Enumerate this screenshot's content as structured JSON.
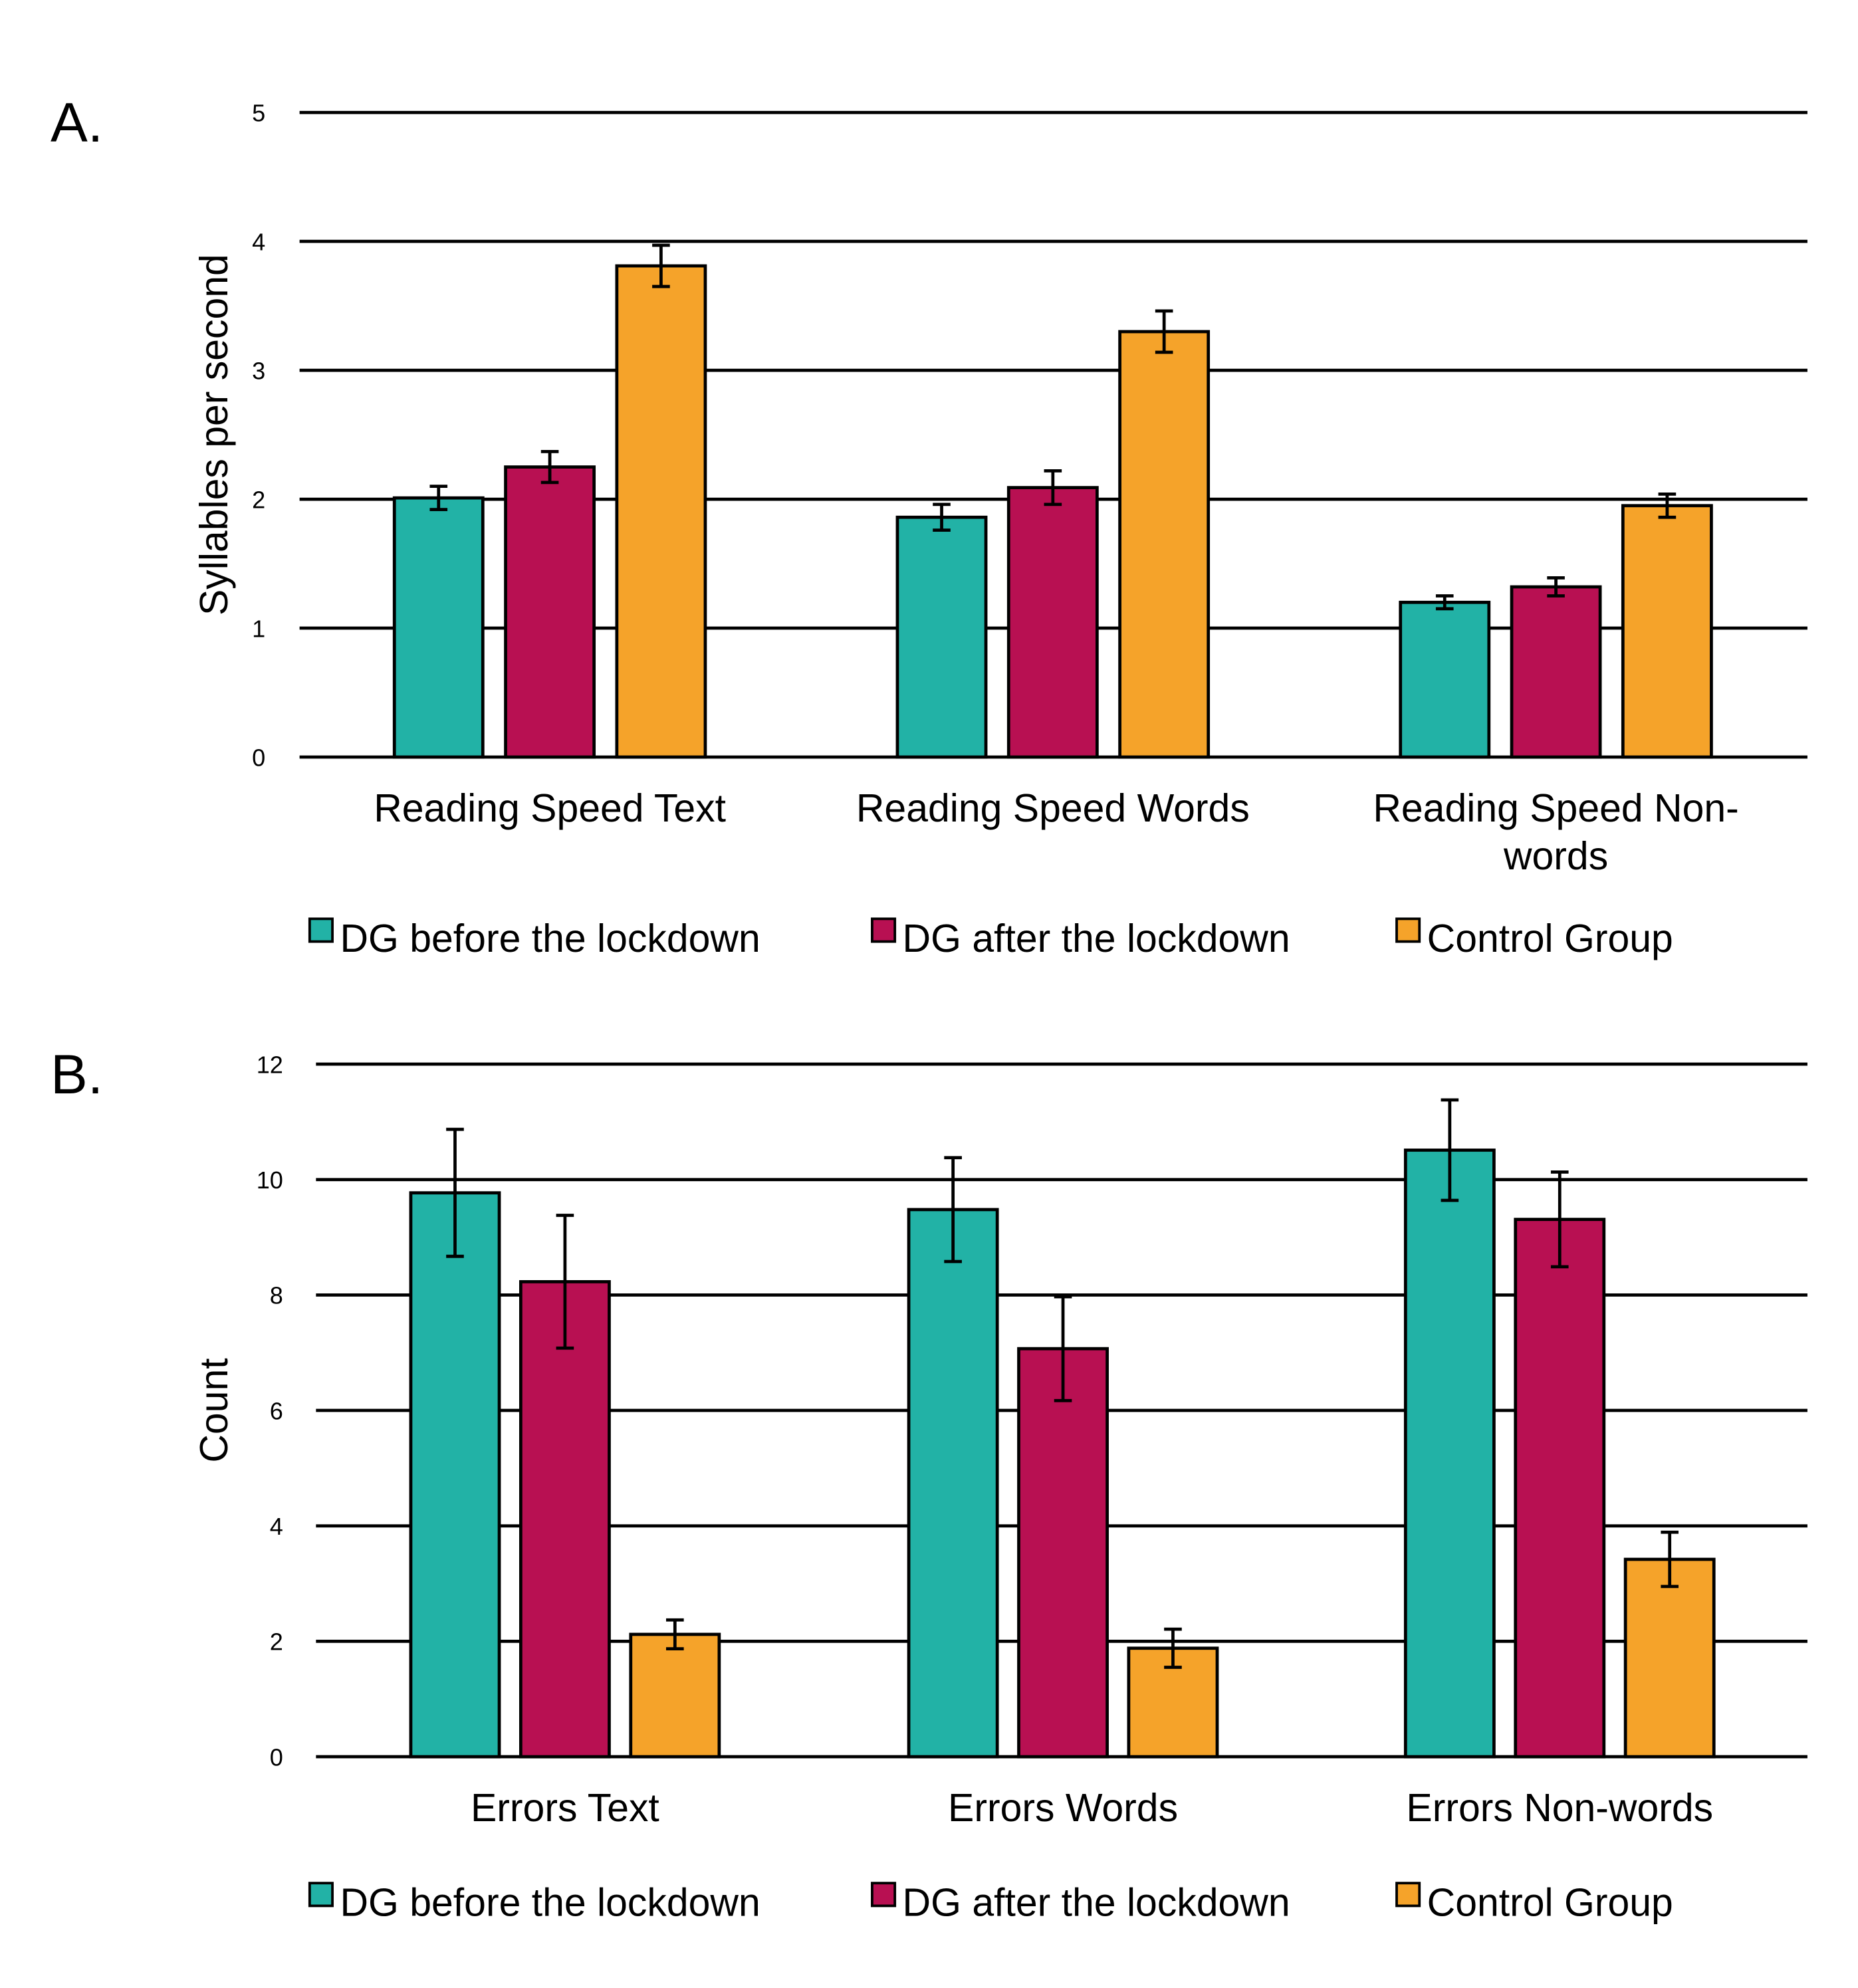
{
  "colors": {
    "before": "#22b2a6",
    "after": "#b81052",
    "control": "#f5a32a"
  },
  "chart_data": [
    {
      "type": "bar",
      "panel_label": "A.",
      "ylabel": "Syllables per second",
      "ylim": [
        0,
        5
      ],
      "yticks": [
        "0",
        "1",
        "2",
        "3",
        "4",
        "5"
      ],
      "grid": true,
      "legend_position": "bottom",
      "categories": [
        "Reading Speed Text",
        "Reading Speed Words",
        "Reading Speed Non-words"
      ],
      "category_lines": [
        [
          "Reading Speed Text"
        ],
        [
          "Reading Speed Words"
        ],
        [
          "Reading Speed Non-",
          "words"
        ]
      ],
      "series": [
        {
          "name": "DG before the lockdown",
          "key": "before",
          "values": [
            2.01,
            1.86,
            1.2
          ],
          "errors": [
            0.09,
            0.1,
            0.05
          ]
        },
        {
          "name": "DG after the lockdown",
          "key": "after",
          "values": [
            2.25,
            2.09,
            1.32
          ],
          "errors": [
            0.12,
            0.13,
            0.07
          ]
        },
        {
          "name": "Control Group",
          "key": "control",
          "values": [
            3.81,
            3.3,
            1.95
          ],
          "errors": [
            0.16,
            0.16,
            0.09
          ]
        }
      ]
    },
    {
      "type": "bar",
      "panel_label": "B.",
      "ylabel": "Count",
      "ylim": [
        0,
        12
      ],
      "yticks": [
        "0",
        "2",
        "4",
        "6",
        "8",
        "10",
        "12"
      ],
      "grid": true,
      "legend_position": "bottom",
      "categories": [
        "Errors Text",
        "Errors Words",
        "Errors Non-words"
      ],
      "category_lines": [
        [
          "Errors Text"
        ],
        [
          "Errors Words"
        ],
        [
          "Errors Non-words"
        ]
      ],
      "series": [
        {
          "name": "DG before the lockdown",
          "key": "before",
          "values": [
            9.77,
            9.48,
            10.51
          ],
          "errors": [
            1.1,
            0.9,
            0.87
          ]
        },
        {
          "name": "DG after the lockdown",
          "key": "after",
          "values": [
            8.23,
            7.07,
            9.31
          ],
          "errors": [
            1.15,
            0.9,
            0.82
          ]
        },
        {
          "name": "Control Group",
          "key": "control",
          "values": [
            2.12,
            1.88,
            3.42
          ],
          "errors": [
            0.25,
            0.33,
            0.47
          ]
        }
      ]
    }
  ]
}
